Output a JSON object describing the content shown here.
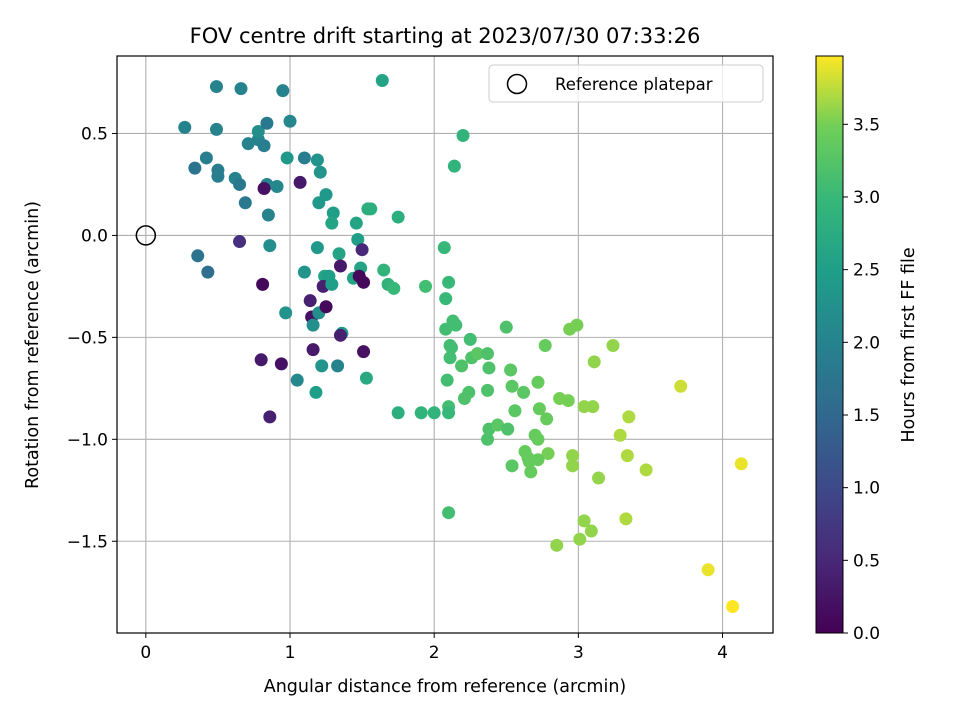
{
  "chart_data": {
    "type": "scatter",
    "title": "FOV centre drift starting at 2023/07/30 07:33:26",
    "xlabel": "Angular distance from reference (arcmin)",
    "ylabel": "Rotation from reference (arcmin)",
    "xlim": [
      -0.2,
      4.35
    ],
    "ylim": [
      -1.95,
      0.88
    ],
    "x_ticks": [
      0,
      1,
      2,
      3,
      4
    ],
    "y_ticks": [
      0.5,
      0.0,
      -0.5,
      -1.0,
      -1.5
    ],
    "x_tick_labels": [
      "0",
      "1",
      "2",
      "3",
      "4"
    ],
    "y_tick_labels": [
      "0.5",
      "0.0",
      "−0.5",
      "−1.0",
      "−1.5"
    ],
    "grid": true,
    "legend": {
      "position": "top-right",
      "entries": [
        "Reference platepar"
      ]
    },
    "reference_point": {
      "x": 0.0,
      "y": 0.0
    },
    "colormap": "viridis",
    "colorbar": {
      "label": "Hours from first FF file",
      "range": [
        0.0,
        3.97
      ],
      "ticks": [
        0.0,
        0.5,
        1.0,
        1.5,
        2.0,
        2.5,
        3.0,
        3.5
      ],
      "tick_labels": [
        "0.0",
        "0.5",
        "1.0",
        "1.5",
        "2.0",
        "2.5",
        "3.0",
        "3.5"
      ]
    },
    "points": [
      {
        "x": 0.71,
        "y": 0.45,
        "c": 2.0
      },
      {
        "x": 0.78,
        "y": 0.47,
        "c": 2.0
      },
      {
        "x": 0.95,
        "y": 0.71,
        "c": 2.0
      },
      {
        "x": 0.49,
        "y": 0.73,
        "c": 2.0
      },
      {
        "x": 0.66,
        "y": 0.72,
        "c": 2.0
      },
      {
        "x": 0.27,
        "y": 0.53,
        "c": 2.0
      },
      {
        "x": 0.49,
        "y": 0.52,
        "c": 2.0
      },
      {
        "x": 0.78,
        "y": 0.51,
        "c": 2.2
      },
      {
        "x": 0.84,
        "y": 0.55,
        "c": 1.8
      },
      {
        "x": 1.0,
        "y": 0.56,
        "c": 2.1
      },
      {
        "x": 0.82,
        "y": 0.44,
        "c": 1.9
      },
      {
        "x": 0.42,
        "y": 0.38,
        "c": 1.9
      },
      {
        "x": 0.34,
        "y": 0.33,
        "c": 1.7
      },
      {
        "x": 0.5,
        "y": 0.32,
        "c": 1.9
      },
      {
        "x": 0.5,
        "y": 0.29,
        "c": 1.9
      },
      {
        "x": 0.62,
        "y": 0.28,
        "c": 2.0
      },
      {
        "x": 0.65,
        "y": 0.25,
        "c": 1.8
      },
      {
        "x": 0.84,
        "y": 0.25,
        "c": 2.0
      },
      {
        "x": 0.82,
        "y": 0.23,
        "c": 0.2
      },
      {
        "x": 0.91,
        "y": 0.24,
        "c": 2.1
      },
      {
        "x": 0.69,
        "y": 0.16,
        "c": 1.8
      },
      {
        "x": 0.85,
        "y": 0.1,
        "c": 2.0
      },
      {
        "x": 0.98,
        "y": 0.38,
        "c": 2.4
      },
      {
        "x": 1.1,
        "y": 0.38,
        "c": 1.9
      },
      {
        "x": 1.19,
        "y": 0.37,
        "c": 2.3
      },
      {
        "x": 1.21,
        "y": 0.31,
        "c": 2.3
      },
      {
        "x": 1.07,
        "y": 0.26,
        "c": 0.3
      },
      {
        "x": 1.25,
        "y": 0.2,
        "c": 2.4
      },
      {
        "x": 1.2,
        "y": 0.16,
        "c": 2.4
      },
      {
        "x": 1.3,
        "y": 0.11,
        "c": 2.5
      },
      {
        "x": 1.29,
        "y": 0.06,
        "c": 2.6
      },
      {
        "x": 1.64,
        "y": 0.76,
        "c": 2.6
      },
      {
        "x": 2.2,
        "y": 0.49,
        "c": 2.9
      },
      {
        "x": 2.14,
        "y": 0.34,
        "c": 2.9
      },
      {
        "x": 1.54,
        "y": 0.13,
        "c": 2.8
      },
      {
        "x": 1.56,
        "y": 0.13,
        "c": 2.8
      },
      {
        "x": 1.75,
        "y": 0.09,
        "c": 2.8
      },
      {
        "x": 1.46,
        "y": 0.06,
        "c": 2.6
      },
      {
        "x": 0.36,
        "y": -0.1,
        "c": 1.7
      },
      {
        "x": 0.43,
        "y": -0.18,
        "c": 1.6
      },
      {
        "x": 0.65,
        "y": -0.03,
        "c": 0.6
      },
      {
        "x": 0.86,
        "y": -0.05,
        "c": 2.2
      },
      {
        "x": 1.19,
        "y": -0.06,
        "c": 2.4
      },
      {
        "x": 1.47,
        "y": -0.02,
        "c": 2.5
      },
      {
        "x": 1.5,
        "y": -0.07,
        "c": 0.5
      },
      {
        "x": 1.34,
        "y": -0.09,
        "c": 2.6
      },
      {
        "x": 1.35,
        "y": -0.15,
        "c": 0.3
      },
      {
        "x": 1.24,
        "y": -0.2,
        "c": 2.6
      },
      {
        "x": 1.27,
        "y": -0.2,
        "c": 2.5
      },
      {
        "x": 1.1,
        "y": -0.18,
        "c": 2.3
      },
      {
        "x": 1.23,
        "y": -0.25,
        "c": 0.4
      },
      {
        "x": 1.29,
        "y": -0.24,
        "c": 2.5
      },
      {
        "x": 1.44,
        "y": -0.21,
        "c": 2.6
      },
      {
        "x": 1.49,
        "y": -0.16,
        "c": 2.6
      },
      {
        "x": 1.48,
        "y": -0.2,
        "c": 0.1
      },
      {
        "x": 1.51,
        "y": -0.23,
        "c": 0.1
      },
      {
        "x": 1.65,
        "y": -0.17,
        "c": 2.9
      },
      {
        "x": 1.68,
        "y": -0.24,
        "c": 2.9
      },
      {
        "x": 1.72,
        "y": -0.26,
        "c": 3.0
      },
      {
        "x": 0.81,
        "y": -0.24,
        "c": 0.1
      },
      {
        "x": 1.14,
        "y": -0.32,
        "c": 0.4
      },
      {
        "x": 0.97,
        "y": -0.38,
        "c": 2.3
      },
      {
        "x": 1.15,
        "y": -0.4,
        "c": 0.2
      },
      {
        "x": 1.2,
        "y": -0.38,
        "c": 2.2
      },
      {
        "x": 1.25,
        "y": -0.35,
        "c": 0.1
      },
      {
        "x": 1.16,
        "y": -0.44,
        "c": 2.2
      },
      {
        "x": 1.36,
        "y": -0.48,
        "c": 2.4
      },
      {
        "x": 1.35,
        "y": -0.49,
        "c": 0.4
      },
      {
        "x": 1.16,
        "y": -0.56,
        "c": 0.3
      },
      {
        "x": 1.51,
        "y": -0.57,
        "c": 0.2
      },
      {
        "x": 0.8,
        "y": -0.61,
        "c": 0.3
      },
      {
        "x": 0.94,
        "y": -0.63,
        "c": 0.2
      },
      {
        "x": 1.22,
        "y": -0.64,
        "c": 2.3
      },
      {
        "x": 1.33,
        "y": -0.64,
        "c": 2.0
      },
      {
        "x": 1.05,
        "y": -0.71,
        "c": 2.1
      },
      {
        "x": 1.53,
        "y": -0.7,
        "c": 2.7
      },
      {
        "x": 1.18,
        "y": -0.77,
        "c": 2.5
      },
      {
        "x": 0.86,
        "y": -0.89,
        "c": 0.4
      },
      {
        "x": 1.75,
        "y": -0.87,
        "c": 2.8
      },
      {
        "x": 1.94,
        "y": -0.25,
        "c": 3.1
      },
      {
        "x": 2.07,
        "y": -0.06,
        "c": 3.0
      },
      {
        "x": 2.1,
        "y": -0.23,
        "c": 3.0
      },
      {
        "x": 2.08,
        "y": -0.31,
        "c": 3.0
      },
      {
        "x": 2.13,
        "y": -0.42,
        "c": 3.1
      },
      {
        "x": 2.15,
        "y": -0.44,
        "c": 3.1
      },
      {
        "x": 2.08,
        "y": -0.46,
        "c": 3.1
      },
      {
        "x": 2.11,
        "y": -0.54,
        "c": 3.1
      },
      {
        "x": 2.12,
        "y": -0.55,
        "c": 3.1
      },
      {
        "x": 2.25,
        "y": -0.51,
        "c": 3.1
      },
      {
        "x": 2.5,
        "y": -0.45,
        "c": 3.2
      },
      {
        "x": 2.11,
        "y": -0.6,
        "c": 3.1
      },
      {
        "x": 2.19,
        "y": -0.64,
        "c": 3.2
      },
      {
        "x": 2.26,
        "y": -0.6,
        "c": 3.2
      },
      {
        "x": 2.3,
        "y": -0.58,
        "c": 3.3
      },
      {
        "x": 2.37,
        "y": -0.58,
        "c": 3.2
      },
      {
        "x": 2.38,
        "y": -0.65,
        "c": 3.2
      },
      {
        "x": 2.09,
        "y": -0.71,
        "c": 3.1
      },
      {
        "x": 2.24,
        "y": -0.77,
        "c": 3.2
      },
      {
        "x": 2.21,
        "y": -0.8,
        "c": 3.2
      },
      {
        "x": 2.37,
        "y": -0.76,
        "c": 3.2
      },
      {
        "x": 1.91,
        "y": -0.87,
        "c": 2.9
      },
      {
        "x": 2.0,
        "y": -0.87,
        "c": 2.9
      },
      {
        "x": 2.1,
        "y": -0.84,
        "c": 3.1
      },
      {
        "x": 2.1,
        "y": -0.87,
        "c": 3.0
      },
      {
        "x": 2.38,
        "y": -0.95,
        "c": 3.2
      },
      {
        "x": 2.44,
        "y": -0.93,
        "c": 3.3
      },
      {
        "x": 2.51,
        "y": -0.95,
        "c": 3.2
      },
      {
        "x": 2.37,
        "y": -1.0,
        "c": 3.2
      },
      {
        "x": 2.53,
        "y": -0.66,
        "c": 3.3
      },
      {
        "x": 2.54,
        "y": -0.74,
        "c": 3.3
      },
      {
        "x": 2.62,
        "y": -0.77,
        "c": 3.3
      },
      {
        "x": 2.56,
        "y": -0.86,
        "c": 3.3
      },
      {
        "x": 2.72,
        "y": -0.72,
        "c": 3.4
      },
      {
        "x": 2.73,
        "y": -0.85,
        "c": 3.4
      },
      {
        "x": 2.78,
        "y": -0.9,
        "c": 3.4
      },
      {
        "x": 2.77,
        "y": -0.54,
        "c": 3.4
      },
      {
        "x": 2.94,
        "y": -0.46,
        "c": 3.5
      },
      {
        "x": 2.99,
        "y": -0.44,
        "c": 3.5
      },
      {
        "x": 3.11,
        "y": -0.62,
        "c": 3.6
      },
      {
        "x": 3.24,
        "y": -0.54,
        "c": 3.6
      },
      {
        "x": 2.87,
        "y": -0.8,
        "c": 3.5
      },
      {
        "x": 2.93,
        "y": -0.81,
        "c": 3.5
      },
      {
        "x": 3.04,
        "y": -0.84,
        "c": 3.6
      },
      {
        "x": 3.1,
        "y": -0.84,
        "c": 3.6
      },
      {
        "x": 3.35,
        "y": -0.89,
        "c": 3.7
      },
      {
        "x": 3.29,
        "y": -0.98,
        "c": 3.7
      },
      {
        "x": 2.7,
        "y": -0.98,
        "c": 3.4
      },
      {
        "x": 2.72,
        "y": -1.0,
        "c": 3.4
      },
      {
        "x": 2.79,
        "y": -1.07,
        "c": 3.5
      },
      {
        "x": 2.63,
        "y": -1.06,
        "c": 3.4
      },
      {
        "x": 2.65,
        "y": -1.09,
        "c": 3.4
      },
      {
        "x": 2.66,
        "y": -1.11,
        "c": 3.4
      },
      {
        "x": 2.72,
        "y": -1.1,
        "c": 3.4
      },
      {
        "x": 2.54,
        "y": -1.13,
        "c": 3.3
      },
      {
        "x": 2.67,
        "y": -1.16,
        "c": 3.4
      },
      {
        "x": 2.96,
        "y": -1.08,
        "c": 3.6
      },
      {
        "x": 2.96,
        "y": -1.13,
        "c": 3.6
      },
      {
        "x": 3.34,
        "y": -1.08,
        "c": 3.7
      },
      {
        "x": 3.14,
        "y": -1.19,
        "c": 3.6
      },
      {
        "x": 3.47,
        "y": -1.15,
        "c": 3.7
      },
      {
        "x": 3.71,
        "y": -0.74,
        "c": 3.8
      },
      {
        "x": 2.1,
        "y": -1.36,
        "c": 3.1
      },
      {
        "x": 3.04,
        "y": -1.4,
        "c": 3.6
      },
      {
        "x": 3.09,
        "y": -1.45,
        "c": 3.6
      },
      {
        "x": 3.33,
        "y": -1.39,
        "c": 3.7
      },
      {
        "x": 2.85,
        "y": -1.52,
        "c": 3.6
      },
      {
        "x": 3.01,
        "y": -1.49,
        "c": 3.6
      },
      {
        "x": 3.9,
        "y": -1.64,
        "c": 3.9
      },
      {
        "x": 4.13,
        "y": -1.12,
        "c": 3.9
      },
      {
        "x": 4.07,
        "y": -1.82,
        "c": 3.97
      }
    ]
  }
}
